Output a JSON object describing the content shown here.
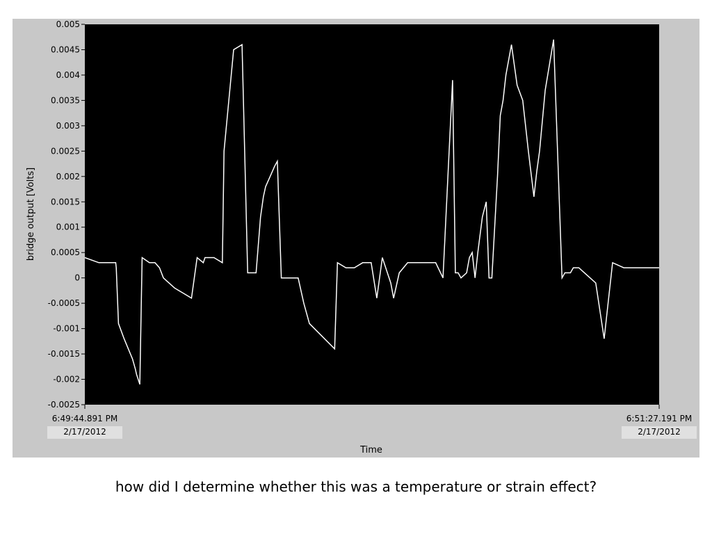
{
  "caption": "how did I determine whether this was a temperature or strain effect?",
  "chart_data": {
    "type": "line",
    "title": "",
    "xlabel": "Time",
    "ylabel": "bridge output [Volts]",
    "xlim": [
      0,
      102.3
    ],
    "ylim": [
      -0.0025,
      0.005
    ],
    "grid": false,
    "x_start_label": [
      "6:49:44.891 PM",
      "2/17/2012"
    ],
    "x_end_label": [
      "6:51:27.191 PM",
      "2/17/2012"
    ],
    "yticks": [
      "-0.0025",
      "-0.002",
      "-0.0015",
      "-0.001",
      "-0.0005",
      "0",
      "0.0005",
      "0.001",
      "0.0015",
      "0.002",
      "0.0025",
      "0.003",
      "0.0035",
      "0.004",
      "0.0045",
      "0.005"
    ],
    "colors": {
      "plot_bg": "#000000",
      "line": "#ffffff",
      "panel": "#c8c8c8",
      "label_box": "#e0e0e0"
    },
    "series": [
      {
        "x": [
          0,
          2.5,
          5.5,
          5.6,
          6.0,
          7.0,
          8.5,
          9.0,
          9.2,
          9.8,
          10.2,
          11.5,
          12.5,
          13.3,
          14.0,
          16.0,
          17.5,
          19.0,
          20.0,
          21.1,
          21.4,
          23.0,
          24.5,
          24.8,
          26.5,
          28.0,
          29.0,
          30.5,
          31.3,
          31.8,
          32.2,
          33.0,
          33.8,
          34.3,
          35.0,
          36.0,
          37.0,
          38.0,
          39.0,
          40.0,
          44.5,
          45.0,
          46.5,
          48.0,
          49.5,
          51.0,
          52.0,
          53.0,
          54.5,
          55.0,
          56.0,
          57.5,
          60.5,
          62.5,
          63.8,
          65.5,
          66.0,
          66.5,
          67.0,
          68.0,
          68.5,
          69.0,
          69.5,
          70.0,
          70.8,
          71.5,
          72.0,
          72.5,
          73.5,
          74.0,
          74.5,
          75.0,
          76.0,
          77.0,
          78.0,
          79.0,
          80.0,
          80.5,
          81.0,
          82.0,
          83.5,
          85.0,
          85.5,
          86.5,
          87.0,
          88.0,
          89.0,
          91.0,
          92.5,
          94.0,
          96.0,
          102.3
        ],
        "values": [
          0.0004,
          0.0003,
          0.0003,
          0.0002,
          -0.0009,
          -0.0012,
          -0.0016,
          -0.0018,
          -0.0019,
          -0.0021,
          0.0004,
          0.0003,
          0.0003,
          0.0002,
          0.0,
          -0.0002,
          -0.0003,
          -0.0004,
          0.0004,
          0.0003,
          0.0004,
          0.0004,
          0.0003,
          0.0025,
          0.0045,
          0.0046,
          0.0001,
          0.0001,
          0.0012,
          0.0016,
          0.0018,
          0.002,
          0.0022,
          0.0023,
          0.0,
          0.0,
          0.0,
          0.0,
          -0.0005,
          -0.0009,
          -0.0014,
          0.0003,
          0.0002,
          0.0002,
          0.0003,
          0.0003,
          -0.0004,
          0.0004,
          -0.0001,
          -0.0004,
          0.0001,
          0.0003,
          0.0003,
          0.0003,
          0.0,
          0.0039,
          0.0001,
          0.0001,
          0.0,
          0.0001,
          0.0004,
          0.0005,
          0.0,
          0.0005,
          0.0012,
          0.0015,
          0.0,
          0.0,
          0.002,
          0.0032,
          0.0035,
          0.004,
          0.0046,
          0.0038,
          0.0035,
          0.0025,
          0.0016,
          0.0021,
          0.0025,
          0.0037,
          0.0047,
          0.0,
          0.0001,
          0.0001,
          0.0002,
          0.0002,
          0.0001,
          -0.0001,
          -0.0012,
          0.0003,
          0.0002,
          0.0002
        ]
      }
    ]
  }
}
